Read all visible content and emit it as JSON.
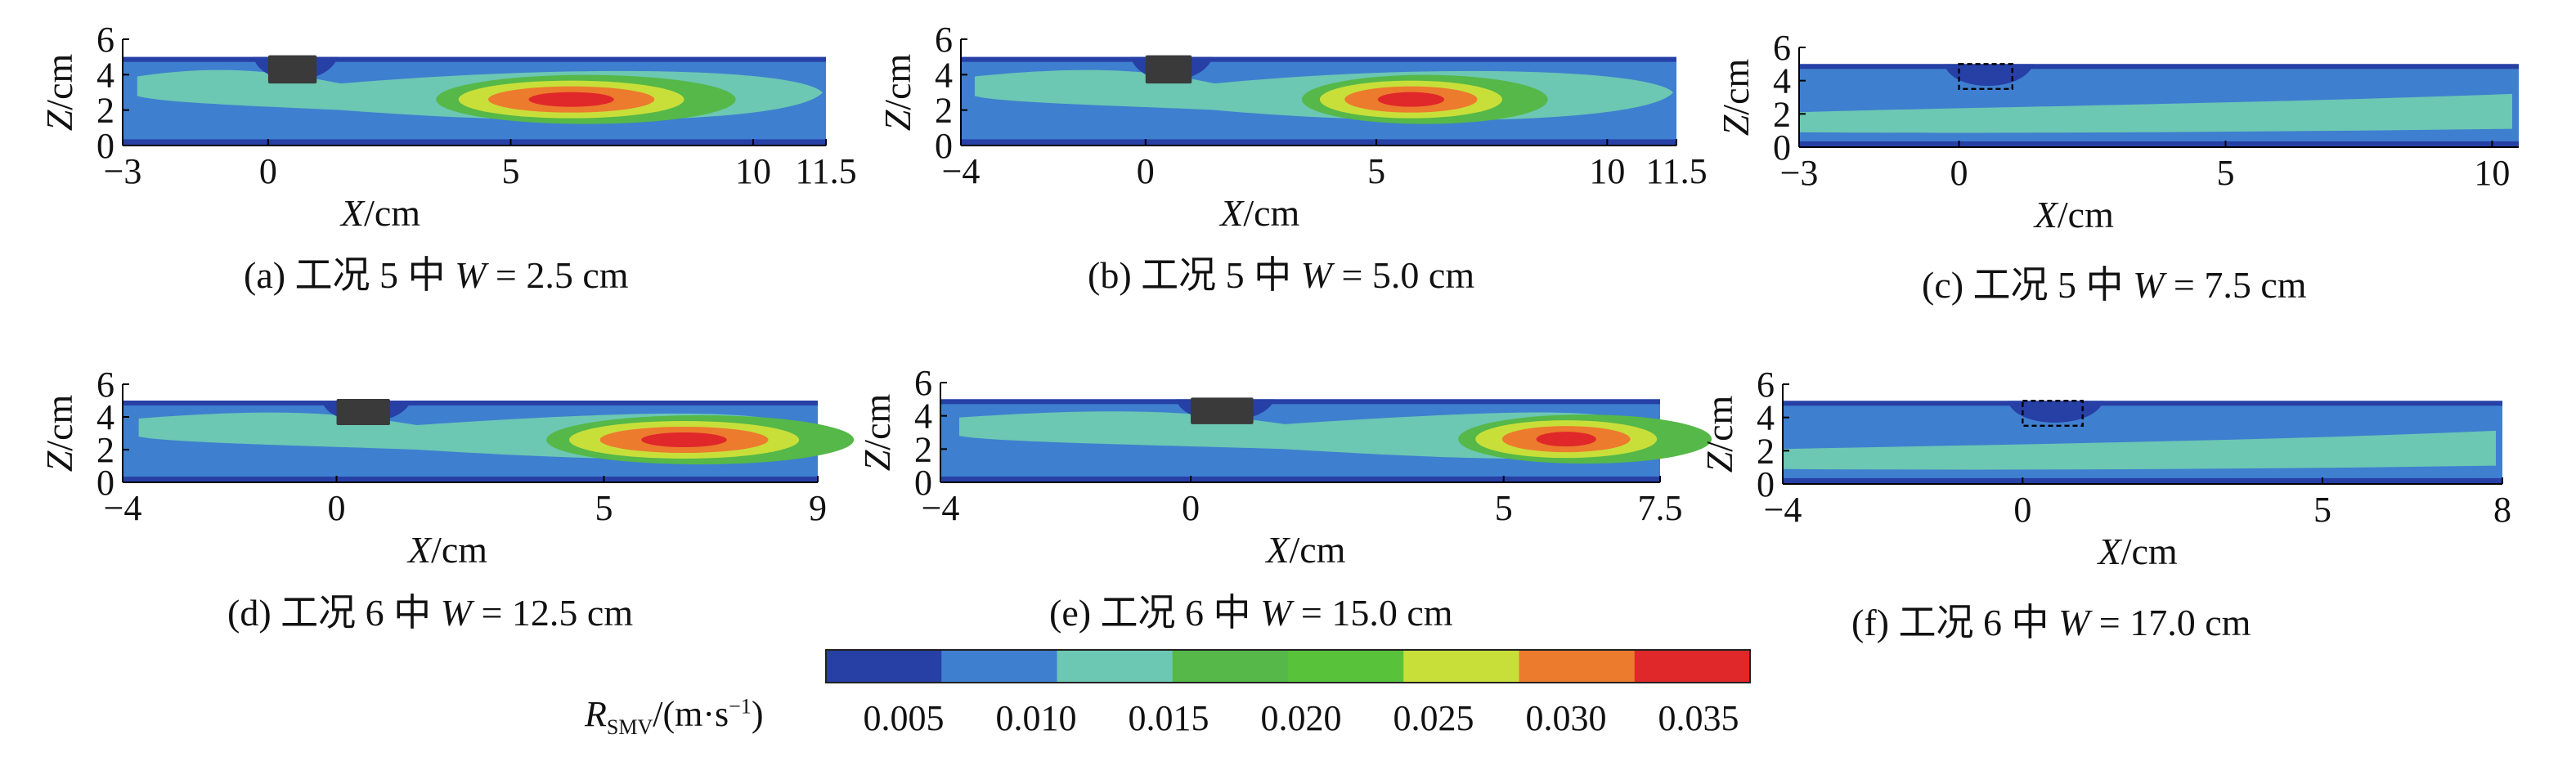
{
  "colors": {
    "levels": [
      "#2740a6",
      "#3f7fcf",
      "#6cc7b3",
      "#55b848",
      "#58c23a",
      "#c8df3a",
      "#ec7b2e",
      "#e0282a"
    ],
    "frame_outline": "#000000",
    "block": "#3a3a3a",
    "bottom_band": "#26359a"
  },
  "figure": {
    "x_axis_label_var": "X",
    "x_axis_label_unit": "/cm",
    "z_axis_label_var": "Z",
    "z_axis_label_unit": "/cm",
    "panels": [
      {
        "id": "a",
        "caption_prefix": "(a) 工况 5 中 ",
        "caption_var": "W",
        "caption_value": " = 2.5 cm",
        "x_ticks": [
          "−3",
          "0",
          "5",
          "10",
          "11.5"
        ],
        "z_ticks": [
          "0",
          "2",
          "4",
          "6"
        ],
        "obstacle": "solid"
      },
      {
        "id": "b",
        "caption_prefix": "(b) 工况 5 中 ",
        "caption_var": "W",
        "caption_value": " = 5.0 cm",
        "x_ticks": [
          "−4",
          "0",
          "5",
          "10",
          "11.5"
        ],
        "z_ticks": [
          "0",
          "2",
          "4",
          "6"
        ],
        "obstacle": "solid"
      },
      {
        "id": "c",
        "caption_prefix": "(c) 工况 5 中 ",
        "caption_var": "W",
        "caption_value": " = 7.5 cm",
        "x_ticks": [
          "−3",
          "0",
          "5",
          "10"
        ],
        "z_ticks": [
          "0",
          "2",
          "4",
          "6"
        ],
        "obstacle": "dashed"
      },
      {
        "id": "d",
        "caption_prefix": "(d) 工况 6 中 ",
        "caption_var": "W",
        "caption_value": " = 12.5 cm",
        "x_ticks": [
          "−4",
          "0",
          "5",
          "9"
        ],
        "z_ticks": [
          "0",
          "2",
          "4",
          "6"
        ],
        "obstacle": "solid"
      },
      {
        "id": "e",
        "caption_prefix": "(e) 工况 6 中 ",
        "caption_var": "W",
        "caption_value": " = 15.0 cm",
        "x_ticks": [
          "−4",
          "0",
          "5",
          "7.5"
        ],
        "z_ticks": [
          "0",
          "2",
          "4",
          "6"
        ],
        "obstacle": "solid"
      },
      {
        "id": "f",
        "caption_prefix": "(f) 工况 6 中 ",
        "caption_var": "W",
        "caption_value": " = 17.0 cm",
        "x_ticks": [
          "−4",
          "0",
          "5",
          "8"
        ],
        "z_ticks": [
          "0",
          "2",
          "4",
          "6"
        ],
        "obstacle": "dashed"
      }
    ],
    "colorbar": {
      "label_var": "R",
      "label_sub": "SMV",
      "label_unit_pre": "/(m·s",
      "label_unit_sup": "−1",
      "label_unit_post": ")",
      "ticks": [
        "0.005",
        "0.010",
        "0.015",
        "0.020",
        "0.025",
        "0.030",
        "0.035"
      ]
    }
  },
  "chart_data": [
    {
      "type": "heatmap",
      "panel": "a",
      "caption": "(a) 工况 5 中 W = 2.5 cm",
      "xlabel": "X/cm",
      "ylabel": "Z/cm",
      "xlim": [
        -3,
        11.5
      ],
      "ylim": [
        0,
        6
      ],
      "x_ticks": [
        -3,
        0,
        5,
        10,
        11.5
      ],
      "z_ticks": [
        0,
        2,
        4,
        6
      ],
      "water_depth": 5,
      "obstacle": {
        "x": [
          0,
          1
        ],
        "z": [
          3.5,
          5
        ],
        "style": "solid"
      },
      "peak_region_x": [
        3.5,
        9
      ],
      "peak_level": 0.035
    },
    {
      "type": "heatmap",
      "panel": "b",
      "caption": "(b) 工况 5 中 W = 5.0 cm",
      "xlabel": "X/cm",
      "ylabel": "Z/cm",
      "xlim": [
        -4,
        11.5
      ],
      "ylim": [
        0,
        6
      ],
      "x_ticks": [
        -4,
        0,
        5,
        10,
        11.5
      ],
      "z_ticks": [
        0,
        2,
        4,
        6
      ],
      "water_depth": 5,
      "obstacle": {
        "x": [
          0,
          1
        ],
        "z": [
          3.5,
          5
        ],
        "style": "solid"
      },
      "peak_region_x": [
        3.5,
        8
      ],
      "peak_level": 0.035
    },
    {
      "type": "heatmap",
      "panel": "c",
      "caption": "(c) 工况 5 中 W = 7.5 cm",
      "xlabel": "X/cm",
      "ylabel": "Z/cm",
      "xlim": [
        -3,
        10.5
      ],
      "ylim": [
        0,
        6
      ],
      "x_ticks": [
        -3,
        0,
        5,
        10
      ],
      "z_ticks": [
        0,
        2,
        4,
        6
      ],
      "water_depth": 5,
      "obstacle": {
        "x": [
          0,
          1
        ],
        "z": [
          3.5,
          5
        ],
        "style": "dashed"
      },
      "peak_level": 0.015
    },
    {
      "type": "heatmap",
      "panel": "d",
      "caption": "(d) 工况 6 中 W = 12.5 cm",
      "xlabel": "X/cm",
      "ylabel": "Z/cm",
      "xlim": [
        -4,
        9
      ],
      "ylim": [
        0,
        6
      ],
      "x_ticks": [
        -4,
        0,
        5,
        9
      ],
      "z_ticks": [
        0,
        2,
        4,
        6
      ],
      "water_depth": 5,
      "obstacle": {
        "x": [
          0,
          1
        ],
        "z": [
          3.5,
          5
        ],
        "style": "solid"
      },
      "peak_region_x": [
        4,
        9
      ],
      "peak_level": 0.035
    },
    {
      "type": "heatmap",
      "panel": "e",
      "caption": "(e) 工况 6 中 W = 15.0 cm",
      "xlabel": "X/cm",
      "ylabel": "Z/cm",
      "xlim": [
        -4,
        7.5
      ],
      "ylim": [
        0,
        6
      ],
      "x_ticks": [
        -4,
        0,
        5,
        7.5
      ],
      "z_ticks": [
        0,
        2,
        4,
        6
      ],
      "water_depth": 5,
      "obstacle": {
        "x": [
          0,
          1
        ],
        "z": [
          3.5,
          5
        ],
        "style": "solid"
      },
      "peak_region_x": [
        4.5,
        7.5
      ],
      "peak_level": 0.035
    },
    {
      "type": "heatmap",
      "panel": "f",
      "caption": "(f) 工况 6 中 W = 17.0 cm",
      "xlabel": "X/cm",
      "ylabel": "Z/cm",
      "xlim": [
        -4,
        8
      ],
      "ylim": [
        0,
        6
      ],
      "x_ticks": [
        -4,
        0,
        5,
        8
      ],
      "z_ticks": [
        0,
        2,
        4,
        6
      ],
      "water_depth": 5,
      "obstacle": {
        "x": [
          0,
          1
        ],
        "z": [
          3.5,
          5
        ],
        "style": "dashed"
      },
      "peak_level": 0.015
    },
    {
      "type": "colorbar",
      "label": "R_SMV/(m·s−1)",
      "levels": [
        0.005,
        0.01,
        0.015,
        0.02,
        0.025,
        0.03,
        0.035
      ]
    }
  ]
}
